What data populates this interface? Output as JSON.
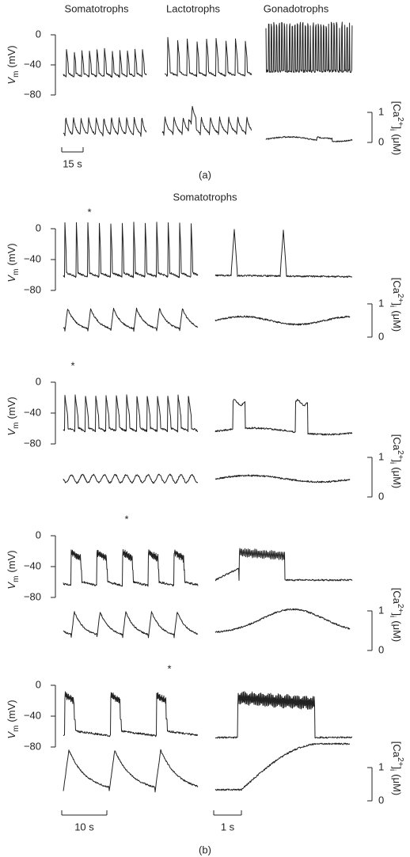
{
  "panel_a": {
    "columns": [
      "Somatotrophs",
      "Lactotrophs",
      "Gonadotrophs"
    ],
    "vm_label": {
      "symbol": "V",
      "subscript": "m",
      "unit": "(mV)"
    },
    "vm_ticks": [
      "0",
      "−40",
      "−80"
    ],
    "ca_label": {
      "open": "[Ca",
      "superscript": "2+",
      "close": "]",
      "subscript": "i",
      "unit": "(μM)"
    },
    "ca_ticks": [
      "1",
      "0"
    ],
    "time_scale": "15 s",
    "caption": "(a)"
  },
  "panel_b": {
    "title": "Somatotrophs",
    "rows": [
      {
        "vm_label": {
          "symbol": "V",
          "subscript": "m",
          "unit": "(mV)"
        },
        "vm_ticks": [
          "0",
          "−40",
          "−80"
        ],
        "ca_label": {
          "open": "[Ca",
          "superscript": "2+",
          "close": "]",
          "subscript": "i",
          "unit": "(μM)"
        },
        "ca_ticks": [
          "1",
          "0"
        ],
        "marker": "*"
      },
      {
        "vm_label": {
          "symbol": "V",
          "subscript": "m",
          "unit": "(mV)"
        },
        "vm_ticks": [
          "0",
          "−40",
          "−80"
        ],
        "ca_label": {
          "open": "[Ca",
          "superscript": "2+",
          "close": "]",
          "subscript": "i",
          "unit": "(μM)"
        },
        "ca_ticks": [
          "1",
          "0"
        ],
        "marker": "*"
      },
      {
        "vm_label": {
          "symbol": "V",
          "subscript": "m",
          "unit": "(mV)"
        },
        "vm_ticks": [
          "0",
          "−40",
          "−80"
        ],
        "ca_label": {
          "open": "[Ca",
          "superscript": "2+",
          "close": "]",
          "subscript": "i",
          "unit": "(μM)"
        },
        "ca_ticks": [
          "1",
          "0"
        ],
        "marker": "*"
      },
      {
        "vm_label": {
          "symbol": "V",
          "subscript": "m",
          "unit": "(mV)"
        },
        "vm_ticks": [
          "0",
          "−40",
          "−80"
        ],
        "ca_label": {
          "open": "[Ca",
          "superscript": "2+",
          "close": "]",
          "subscript": "i",
          "unit": "(μM)"
        },
        "ca_ticks": [
          "1",
          "0"
        ],
        "marker": "*"
      }
    ],
    "time_scales": [
      "10 s",
      "1 s"
    ],
    "caption": "(b)"
  }
}
